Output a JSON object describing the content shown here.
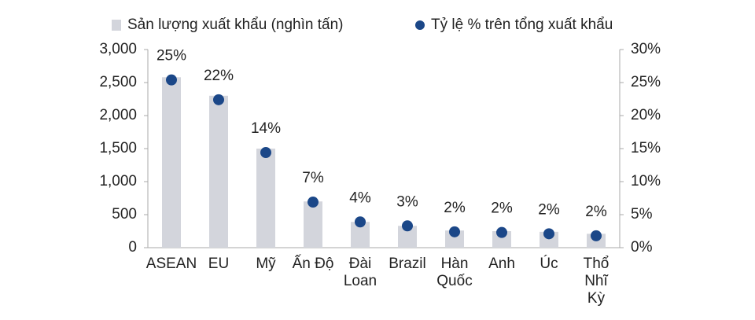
{
  "chart_data": {
    "type": "combo",
    "categories": [
      "ASEAN",
      "EU",
      "Mỹ",
      "Ấn Độ",
      "Đài\nLoan",
      "Brazil",
      "Hàn\nQuốc",
      "Anh",
      "Úc",
      "Thổ\nNhĩ\nKỳ"
    ],
    "series": [
      {
        "name": "Sản lượng xuất khẩu (nghìn tấn)",
        "type": "bar",
        "color": "#d3d5dc",
        "values": [
          2580,
          2300,
          1500,
          700,
          390,
          330,
          260,
          250,
          240,
          210
        ]
      },
      {
        "name": "Tỷ lệ % trên tổng xuất khẩu",
        "type": "scatter",
        "axis": "y2",
        "color": "#1b4788",
        "values": [
          25.4,
          22.4,
          14.4,
          6.9,
          3.9,
          3.3,
          2.4,
          2.3,
          2.1,
          1.8
        ],
        "value_labels": [
          "25%",
          "22%",
          "14%",
          "7%",
          "4%",
          "3%",
          "2%",
          "2%",
          "2%",
          "2%"
        ]
      }
    ],
    "ylim": [
      0,
      3000
    ],
    "yticks": [
      0,
      500,
      {
        "value": 1000,
        "label": "1,000"
      },
      {
        "value": 1500,
        "label": "1,500"
      },
      {
        "value": 2000,
        "label": "2,000"
      },
      {
        "value": 2500,
        "label": "2,500"
      },
      {
        "value": 3000,
        "label": "3,000"
      }
    ],
    "y2lim": [
      0,
      30
    ],
    "y2ticks": [
      {
        "value": 0,
        "label": "0%"
      },
      {
        "value": 5,
        "label": "5%"
      },
      {
        "value": 10,
        "label": "10%"
      },
      {
        "value": 15,
        "label": "15%"
      },
      {
        "value": 20,
        "label": "20%"
      },
      {
        "value": 25,
        "label": "25%"
      },
      {
        "value": 30,
        "label": "30%"
      }
    ],
    "grid": false
  }
}
